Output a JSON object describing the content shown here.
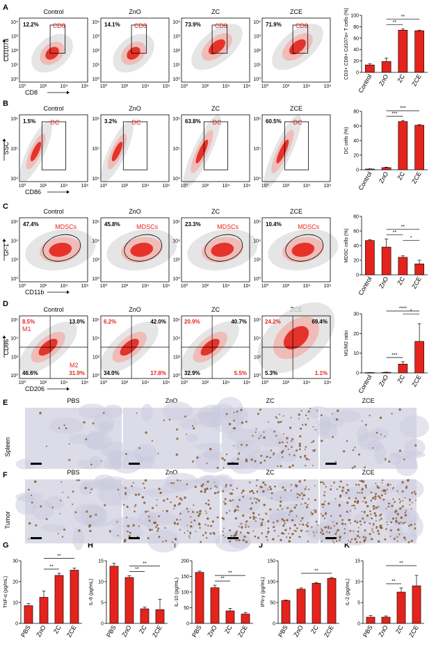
{
  "panel_letters": [
    "A",
    "B",
    "C",
    "D",
    "E",
    "F",
    "G",
    "H",
    "I",
    "J",
    "K"
  ],
  "colors": {
    "accent": "#e3231c",
    "cloud": "#dedede",
    "ihc_bg": "#dcdce8",
    "stain": "#8a5a2a"
  },
  "flow_rows": [
    {
      "letter": "A",
      "groups": [
        "Control",
        "ZnO",
        "ZC",
        "ZCE"
      ],
      "pcts": [
        "12.2%",
        "14.1%",
        "73.9%",
        "71.9%"
      ],
      "gate_label": "CD8",
      "gate_shape": "rect",
      "ylabel": "CD107a",
      "xlabel": "CD8",
      "yticks": [
        "10⁴",
        "10³",
        "10²",
        "10¹",
        "10⁰"
      ],
      "xticks": [
        "10⁰",
        "10²",
        "10⁴",
        "10⁶"
      ]
    },
    {
      "letter": "B",
      "groups": [
        "Control",
        "ZnO",
        "ZC",
        "ZCE"
      ],
      "pcts": [
        "1.5%",
        "3.2%",
        "63.8%",
        "60.5%"
      ],
      "gate_label": "DC",
      "gate_shape": "rect",
      "ylabel": "SSC",
      "xlabel": "CD86",
      "yticks": [
        "10⁶",
        "10⁵",
        "10⁴"
      ],
      "xticks": [
        "10⁰",
        "10²",
        "10⁴",
        "10⁶"
      ]
    },
    {
      "letter": "C",
      "groups": [
        "Control",
        "ZnO",
        "ZC",
        "ZCE"
      ],
      "pcts": [
        "47.4%",
        "45.8%",
        "23.3%",
        "10.4%"
      ],
      "gate_label": "MDSCs",
      "gate_shape": "ellipse",
      "ylabel": "Gr-1",
      "xlabel": "CD11b",
      "yticks": [
        "10⁶",
        "10⁴",
        "10²",
        "10⁰"
      ],
      "xticks": [
        "10⁰",
        "10²",
        "10⁴",
        "10⁶"
      ]
    },
    {
      "letter": "D",
      "groups": [
        "Control",
        "ZnO",
        "ZC",
        "ZCE"
      ],
      "quadrants": [
        {
          "tl": "8.5%",
          "tr": "13.0%",
          "bl": "46.6%",
          "br": "31.9%"
        },
        {
          "tl": "6.2%",
          "tr": "42.0%",
          "bl": "34.0%",
          "br": "17.8%"
        },
        {
          "tl": "20.9%",
          "tr": "40.7%",
          "bl": "32.9%",
          "br": "5.5%"
        },
        {
          "tl": "24.2%",
          "tr": "69.4%",
          "bl": "5.3%",
          "br": "1.1%"
        }
      ],
      "m1_label": "M1",
      "m2_label": "M2",
      "ylabel": "CD86",
      "xlabel": "CD206",
      "yticks": [
        "10⁶",
        "10⁴",
        "10²",
        "10⁰"
      ],
      "xticks": [
        "10⁰",
        "10²",
        "10⁴",
        "10⁶"
      ]
    }
  ],
  "ihc_rows": [
    {
      "letter": "E",
      "row_label": "Spleen",
      "groups": [
        "PBS",
        "ZnO",
        "ZC",
        "ZCE"
      ],
      "stain_density": [
        0.05,
        0.08,
        0.4,
        0.12
      ]
    },
    {
      "letter": "F",
      "row_label": "Tumor",
      "groups": [
        "PBS",
        "ZnO",
        "ZC",
        "ZCE"
      ],
      "stain_density": [
        0.15,
        0.55,
        0.8,
        0.95
      ]
    }
  ],
  "chart_data": [
    {
      "id": "A",
      "type": "bar",
      "categories": [
        "Control",
        "ZnO",
        "ZC",
        "ZCE"
      ],
      "values": [
        13,
        19,
        74,
        73
      ],
      "errors": [
        2,
        6,
        2,
        1
      ],
      "ylabel": "CD3+ CD8+ Cd107a+ T cells (%)",
      "ylim": [
        0,
        100
      ],
      "yticks": [
        0,
        20,
        40,
        60,
        80,
        100
      ],
      "sig": [
        {
          "from": 2,
          "to": 1,
          "label": "**"
        },
        {
          "from": 3,
          "to": 1,
          "label": "**"
        }
      ]
    },
    {
      "id": "B",
      "type": "bar",
      "categories": [
        "Control",
        "ZnO",
        "ZC",
        "ZCE"
      ],
      "values": [
        1,
        3,
        66,
        61
      ],
      "errors": [
        0.3,
        0.5,
        1.5,
        0.8
      ],
      "ylabel": "DC cells (%)",
      "ylim": [
        0,
        80
      ],
      "yticks": [
        0,
        20,
        40,
        60,
        80
      ],
      "sig": [
        {
          "from": 2,
          "to": 1,
          "label": "***"
        },
        {
          "from": 3,
          "to": 1,
          "label": "***"
        }
      ]
    },
    {
      "id": "C",
      "type": "bar",
      "categories": [
        "Control",
        "ZnO",
        "ZC",
        "ZCE"
      ],
      "values": [
        47,
        38,
        24,
        15
      ],
      "errors": [
        1,
        11,
        2,
        5
      ],
      "ylabel": "MDSC cells (%)",
      "ylim": [
        0,
        80
      ],
      "yticks": [
        0,
        20,
        40,
        60,
        80
      ],
      "sig": [
        {
          "from": 2,
          "to": 1,
          "label": "**"
        },
        {
          "from": 3,
          "to": 1,
          "label": "**"
        },
        {
          "from": 3,
          "to": 2,
          "label": "*"
        }
      ]
    },
    {
      "id": "D",
      "type": "bar",
      "categories": [
        "Control",
        "ZnO",
        "ZC",
        "ZCE"
      ],
      "values": [
        0.2,
        0.3,
        4.5,
        16
      ],
      "errors": [
        0.05,
        0.1,
        1.2,
        9
      ],
      "ylabel": "M1/M2 ratio",
      "ylim": [
        0,
        30
      ],
      "yticks": [
        0,
        10,
        20,
        30
      ],
      "sig": [
        {
          "from": 2,
          "to": 1,
          "label": "***"
        },
        {
          "from": 3,
          "to": 2,
          "label": "*"
        },
        {
          "from": 3,
          "to": 1,
          "label": "****"
        }
      ]
    },
    {
      "id": "G",
      "type": "bar",
      "categories": [
        "PBS",
        "ZnO",
        "ZC",
        "ZCE"
      ],
      "values": [
        8.5,
        12.5,
        23,
        25.5
      ],
      "errors": [
        1,
        3,
        1,
        1
      ],
      "ylabel": "TNF-α (pg/mL)",
      "ylim": [
        0,
        30
      ],
      "yticks": [
        0,
        10,
        20,
        30
      ],
      "sig": [
        {
          "from": 2,
          "to": 1,
          "label": "**"
        },
        {
          "from": 3,
          "to": 1,
          "label": "**"
        }
      ]
    },
    {
      "id": "H",
      "type": "bar",
      "categories": [
        "PBS",
        "ZnO",
        "ZC",
        "ZCE"
      ],
      "values": [
        13.7,
        11,
        3.5,
        3.3
      ],
      "errors": [
        0.7,
        0.4,
        0.4,
        2.5
      ],
      "ylabel": "IL-6 (pg/mL)",
      "ylim": [
        0,
        15
      ],
      "yticks": [
        0,
        5,
        10,
        15
      ],
      "sig": [
        {
          "from": 1,
          "to": 2,
          "label": "**"
        },
        {
          "from": 1,
          "to": 3,
          "label": "**"
        }
      ]
    },
    {
      "id": "I",
      "type": "bar",
      "categories": [
        "PBS",
        "ZnO",
        "ZC",
        "ZCE"
      ],
      "values": [
        163,
        114,
        40,
        30
      ],
      "errors": [
        4,
        8,
        8,
        5
      ],
      "ylabel": "IL-10 (pg/mL)",
      "ylim": [
        0,
        200
      ],
      "yticks": [
        0,
        50,
        100,
        150,
        200
      ],
      "sig": [
        {
          "from": 1,
          "to": 2,
          "label": "**"
        },
        {
          "from": 1,
          "to": 3,
          "label": "**"
        }
      ]
    },
    {
      "id": "J",
      "type": "bar",
      "categories": [
        "PBS",
        "ZnO",
        "ZC",
        "ZCE"
      ],
      "values": [
        55,
        82,
        96,
        108
      ],
      "errors": [
        1,
        3,
        2,
        2
      ],
      "ylabel": "IFN-γ (pg/mL)",
      "ylim": [
        0,
        150
      ],
      "yticks": [
        0,
        50,
        100,
        150
      ],
      "sig": [
        {
          "from": 1,
          "to": 3,
          "label": "**"
        }
      ]
    },
    {
      "id": "K",
      "type": "bar",
      "categories": [
        "PBS",
        "ZnO",
        "ZC",
        "ZCE"
      ],
      "values": [
        1.5,
        1.5,
        7.5,
        9
      ],
      "errors": [
        0.4,
        0.3,
        1,
        2.5
      ],
      "ylabel": "IL-2 (pg/mL)",
      "ylim": [
        0,
        15
      ],
      "yticks": [
        0,
        5,
        10,
        15
      ],
      "sig": [
        {
          "from": 2,
          "to": 1,
          "label": "**"
        },
        {
          "from": 3,
          "to": 1,
          "label": "**"
        }
      ]
    }
  ]
}
